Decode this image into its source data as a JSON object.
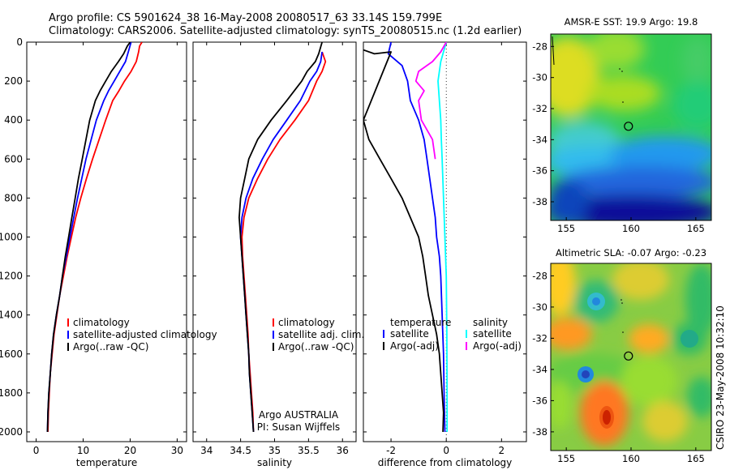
{
  "figure": {
    "title_line1": "Argo profile: CS 5901624_38 16-May-2008 20080517_63 33.14S 159.799E",
    "title_line2": "Climatology: CARS2006. Satellite-adjusted climatology: synTS_20080515.nc (1.2d earlier)",
    "side_label": "CSIRO 23-May-2008 10:32:10"
  },
  "colors": {
    "climatology": "#ff0000",
    "satellite": "#0000ff",
    "argo": "#000000",
    "satellite_salinity": "#00ffff",
    "argo_adj_salinity": "#ff00ff"
  },
  "chart_data": [
    {
      "id": "temperature",
      "type": "line",
      "xlabel": "temperature",
      "xlim": [
        -2,
        32
      ],
      "ylim": [
        2050,
        0
      ],
      "y_inverted": true,
      "xticks": [
        "0",
        "10",
        "20",
        "30"
      ],
      "yticks": [
        "0",
        "200",
        "400",
        "600",
        "800",
        "1000",
        "1200",
        "1400",
        "1600",
        "1800",
        "2000"
      ],
      "legend": [
        "climatology",
        "satellite-adjusted climatology",
        "Argo(..raw -QC)"
      ],
      "series": [
        {
          "name": "climatology",
          "color": "#ff0000",
          "points": [
            [
              22.5,
              0
            ],
            [
              22.0,
              20
            ],
            [
              21.8,
              50
            ],
            [
              21.3,
              100
            ],
            [
              20.2,
              150
            ],
            [
              18.8,
              200
            ],
            [
              17.6,
              250
            ],
            [
              16.3,
              300
            ],
            [
              14.8,
              400
            ],
            [
              13.4,
              500
            ],
            [
              12.0,
              600
            ],
            [
              10.7,
              700
            ],
            [
              9.5,
              800
            ],
            [
              8.4,
              900
            ],
            [
              7.5,
              1000
            ],
            [
              6.6,
              1100
            ],
            [
              5.8,
              1200
            ],
            [
              5.0,
              1300
            ],
            [
              4.4,
              1400
            ],
            [
              3.8,
              1500
            ],
            [
              3.4,
              1600
            ],
            [
              3.0,
              1700
            ],
            [
              2.8,
              1800
            ],
            [
              2.6,
              1900
            ],
            [
              2.5,
              2000
            ]
          ]
        },
        {
          "name": "satellite-adjusted climatology",
          "color": "#0000ff",
          "points": [
            [
              20.2,
              0
            ],
            [
              19.6,
              50
            ],
            [
              19.0,
              100
            ],
            [
              17.8,
              150
            ],
            [
              16.6,
              200
            ],
            [
              15.4,
              250
            ],
            [
              14.4,
              300
            ],
            [
              12.8,
              400
            ],
            [
              11.7,
              500
            ],
            [
              10.6,
              600
            ],
            [
              9.7,
              700
            ],
            [
              8.8,
              800
            ],
            [
              8.0,
              900
            ],
            [
              7.2,
              1000
            ],
            [
              6.4,
              1100
            ],
            [
              5.6,
              1200
            ],
            [
              5.0,
              1300
            ],
            [
              4.3,
              1400
            ],
            [
              3.7,
              1500
            ],
            [
              3.3,
              1600
            ],
            [
              3.0,
              1700
            ],
            [
              2.7,
              1800
            ],
            [
              2.5,
              1900
            ],
            [
              2.4,
              2000
            ]
          ]
        },
        {
          "name": "Argo(..raw -QC)",
          "color": "#000000",
          "points": [
            [
              20.0,
              0
            ],
            [
              19.4,
              20
            ],
            [
              18.6,
              60
            ],
            [
              17.5,
              100
            ],
            [
              16.0,
              150
            ],
            [
              14.8,
              200
            ],
            [
              13.6,
              250
            ],
            [
              12.6,
              300
            ],
            [
              11.4,
              400
            ],
            [
              10.6,
              500
            ],
            [
              9.8,
              600
            ],
            [
              9.0,
              700
            ],
            [
              8.3,
              800
            ],
            [
              7.6,
              900
            ],
            [
              6.9,
              1000
            ],
            [
              6.2,
              1100
            ],
            [
              5.6,
              1200
            ],
            [
              5.0,
              1300
            ],
            [
              4.3,
              1400
            ],
            [
              3.7,
              1500
            ],
            [
              3.3,
              1600
            ],
            [
              3.0,
              1700
            ],
            [
              2.7,
              1800
            ],
            [
              2.5,
              1900
            ],
            [
              2.4,
              2000
            ]
          ]
        }
      ]
    },
    {
      "id": "salinity",
      "type": "line",
      "xlabel": "salinity",
      "xlim": [
        33.8,
        36.2
      ],
      "ylim": [
        2050,
        0
      ],
      "y_inverted": true,
      "xticks": [
        "34",
        "34.5",
        "35",
        "35.5",
        "36"
      ],
      "legend": [
        "climatology",
        "satellite adj. clim.",
        "Argo(..raw -QC)"
      ],
      "annotation": [
        "Argo AUSTRALIA",
        "PI: Susan Wijffels"
      ],
      "series": [
        {
          "name": "climatology",
          "color": "#ff0000",
          "points": [
            [
              35.7,
              50
            ],
            [
              35.75,
              100
            ],
            [
              35.7,
              150
            ],
            [
              35.62,
              200
            ],
            [
              35.5,
              300
            ],
            [
              35.3,
              400
            ],
            [
              35.08,
              500
            ],
            [
              34.9,
              600
            ],
            [
              34.75,
              700
            ],
            [
              34.62,
              800
            ],
            [
              34.55,
              900
            ],
            [
              34.52,
              1000
            ],
            [
              34.53,
              1100
            ],
            [
              34.55,
              1200
            ],
            [
              34.57,
              1300
            ],
            [
              34.59,
              1400
            ],
            [
              34.61,
              1500
            ],
            [
              34.62,
              1600
            ],
            [
              34.64,
              1700
            ],
            [
              34.66,
              1800
            ],
            [
              34.68,
              1900
            ],
            [
              34.69,
              2000
            ]
          ]
        },
        {
          "name": "satellite adj. clim.",
          "color": "#0000ff",
          "points": [
            [
              35.7,
              50
            ],
            [
              35.68,
              100
            ],
            [
              35.62,
              150
            ],
            [
              35.52,
              200
            ],
            [
              35.38,
              300
            ],
            [
              35.18,
              400
            ],
            [
              34.98,
              500
            ],
            [
              34.82,
              600
            ],
            [
              34.68,
              700
            ],
            [
              34.58,
              800
            ],
            [
              34.52,
              900
            ],
            [
              34.5,
              1000
            ],
            [
              34.52,
              1100
            ],
            [
              34.54,
              1200
            ],
            [
              34.56,
              1300
            ],
            [
              34.58,
              1400
            ],
            [
              34.6,
              1500
            ],
            [
              34.62,
              1600
            ],
            [
              34.63,
              1700
            ],
            [
              34.65,
              1800
            ],
            [
              34.67,
              1900
            ],
            [
              34.69,
              2000
            ]
          ]
        },
        {
          "name": "Argo(..raw -QC)",
          "color": "#000000",
          "points": [
            [
              35.7,
              0
            ],
            [
              35.65,
              60
            ],
            [
              35.6,
              100
            ],
            [
              35.48,
              150
            ],
            [
              35.4,
              200
            ],
            [
              35.18,
              300
            ],
            [
              34.95,
              400
            ],
            [
              34.75,
              500
            ],
            [
              34.62,
              600
            ],
            [
              34.56,
              700
            ],
            [
              34.5,
              800
            ],
            [
              34.48,
              900
            ],
            [
              34.5,
              1000
            ],
            [
              34.52,
              1100
            ],
            [
              34.54,
              1200
            ],
            [
              34.56,
              1300
            ],
            [
              34.58,
              1400
            ],
            [
              34.6,
              1500
            ],
            [
              34.62,
              1600
            ],
            [
              34.63,
              1700
            ],
            [
              34.65,
              1800
            ],
            [
              34.67,
              1900
            ],
            [
              34.69,
              2000
            ]
          ]
        }
      ]
    },
    {
      "id": "difference",
      "type": "line",
      "xlabel": "difference from climatology",
      "xlim": [
        -3.0,
        2.9
      ],
      "ylim": [
        2050,
        0
      ],
      "y_inverted": true,
      "xticks": [
        "-2",
        "0",
        "2"
      ],
      "legend": [
        "temperature",
        "satellite",
        "Argo(-adj)",
        "salinity",
        "satellite",
        "Argo(-adj)"
      ],
      "series": [
        {
          "name": "temperature satellite",
          "color": "#0000ff",
          "points": [
            [
              -2.0,
              0
            ],
            [
              -2.1,
              60
            ],
            [
              -1.6,
              120
            ],
            [
              -1.4,
              200
            ],
            [
              -1.3,
              300
            ],
            [
              -1.0,
              400
            ],
            [
              -0.8,
              500
            ],
            [
              -0.7,
              600
            ],
            [
              -0.6,
              700
            ],
            [
              -0.5,
              800
            ],
            [
              -0.4,
              900
            ],
            [
              -0.35,
              1000
            ],
            [
              -0.25,
              1100
            ],
            [
              -0.2,
              1200
            ],
            [
              -0.15,
              1400
            ],
            [
              -0.1,
              1600
            ],
            [
              -0.08,
              1800
            ],
            [
              -0.05,
              2000
            ]
          ]
        },
        {
          "name": "temperature Argo(-adj)",
          "color": "#000000",
          "points": [
            [
              -3.0,
              40
            ],
            [
              -2.6,
              60
            ],
            [
              -2.0,
              50
            ],
            [
              -3.0,
              400
            ],
            [
              -2.8,
              500
            ],
            [
              -2.4,
              600
            ],
            [
              -2.0,
              700
            ],
            [
              -1.6,
              800
            ],
            [
              -1.3,
              900
            ],
            [
              -1.0,
              1000
            ],
            [
              -0.85,
              1100
            ],
            [
              -0.75,
              1200
            ],
            [
              -0.65,
              1300
            ],
            [
              -0.5,
              1400
            ],
            [
              -0.35,
              1500
            ],
            [
              -0.25,
              1600
            ],
            [
              -0.2,
              1700
            ],
            [
              -0.15,
              1800
            ],
            [
              -0.1,
              1900
            ],
            [
              -0.12,
              2000
            ]
          ]
        },
        {
          "name": "salinity satellite",
          "color": "#00ffff",
          "points": [
            [
              0.0,
              0
            ],
            [
              -0.1,
              50
            ],
            [
              -0.2,
              100
            ],
            [
              -0.3,
              200
            ],
            [
              -0.25,
              300
            ],
            [
              -0.2,
              400
            ],
            [
              -0.18,
              500
            ],
            [
              -0.15,
              600
            ],
            [
              -0.1,
              800
            ],
            [
              -0.05,
              1000
            ],
            [
              0.0,
              1200
            ],
            [
              0.02,
              1500
            ],
            [
              0.03,
              1800
            ],
            [
              0.03,
              2000
            ]
          ]
        },
        {
          "name": "salinity Argo(-adj)",
          "color": "#ff00ff",
          "points": [
            [
              0.0,
              0
            ],
            [
              -0.2,
              50
            ],
            [
              -0.5,
              100
            ],
            [
              -1.0,
              150
            ],
            [
              -1.1,
              200
            ],
            [
              -0.8,
              250
            ],
            [
              -1.0,
              300
            ],
            [
              -0.9,
              400
            ],
            [
              -0.5,
              500
            ],
            [
              -0.4,
              600
            ]
          ]
        }
      ]
    },
    {
      "id": "sst_map",
      "type": "heatmap",
      "title": "AMSR-E SST: 19.9 Argo: 19.8",
      "xlim": [
        153.8,
        166.2
      ],
      "ylim": [
        -39.2,
        -27.2
      ],
      "xticks": [
        "155",
        "160",
        "165"
      ],
      "yticks": [
        "-28",
        "-30",
        "-32",
        "-34",
        "-36",
        "-38"
      ],
      "marker": {
        "lon": 159.799,
        "lat": -33.14
      }
    },
    {
      "id": "sla_map",
      "type": "heatmap",
      "title": "Altimetric SLA: -0.07 Argo: -0.23",
      "xlim": [
        153.8,
        166.2
      ],
      "ylim": [
        -39.2,
        -27.2
      ],
      "xticks": [
        "155",
        "160",
        "165"
      ],
      "yticks": [
        "-28",
        "-30",
        "-32",
        "-34",
        "-36",
        "-38"
      ],
      "marker": {
        "lon": 159.799,
        "lat": -33.14
      }
    }
  ]
}
